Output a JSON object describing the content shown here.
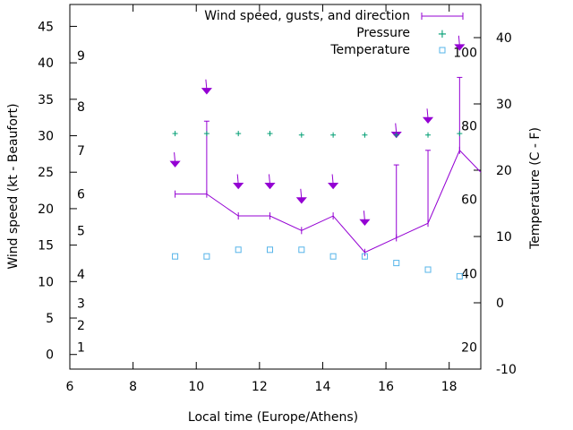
{
  "chart_data": {
    "type": "line",
    "xlabel": "Local time (Europe/Athens)",
    "ylabel": "Wind speed (kt - Beaufort)",
    "y2label": "Temperature (C - F)",
    "xlim": [
      6,
      19
    ],
    "ylim": [
      -2,
      48
    ],
    "y2lim": [
      -10,
      45
    ],
    "x_ticks": [
      "6",
      "8",
      "10",
      "12",
      "14",
      "16",
      "18"
    ],
    "y_ticks": [
      "0",
      "5",
      "10",
      "15",
      "20",
      "25",
      "30",
      "35",
      "40",
      "45"
    ],
    "y2_ticks": [
      "-10",
      "0",
      "10",
      "20",
      "30",
      "40"
    ],
    "beaufort_labels": [
      {
        "text": "1",
        "y": 1
      },
      {
        "text": "2",
        "y": 4
      },
      {
        "text": "3",
        "y": 7
      },
      {
        "text": "4",
        "y": 11
      },
      {
        "text": "5",
        "y": 17
      },
      {
        "text": "6",
        "y": 22
      },
      {
        "text": "7",
        "y": 28
      },
      {
        "text": "8",
        "y": 34
      },
      {
        "text": "9",
        "y": 41
      }
    ],
    "fahrenheit_labels": [
      {
        "text": "20",
        "c": -6.7
      },
      {
        "text": "40",
        "c": 4.4
      },
      {
        "text": "60",
        "c": 15.6
      },
      {
        "text": "80",
        "c": 26.7
      },
      {
        "text": "100",
        "c": 37.8
      }
    ],
    "legend": {
      "position": "top-right",
      "entries": [
        "Wind speed, gusts, and direction",
        "Pressure",
        "Temperature"
      ]
    },
    "colors": {
      "wind": "#9400d3",
      "pressure": "#009e73",
      "temperature": "#56b4e9"
    },
    "series": [
      {
        "name": "Wind speed, gusts, and direction",
        "x": [
          9.33,
          10.33,
          11.33,
          12.33,
          13.33,
          14.33,
          15.33,
          16.33,
          17.33,
          18.33,
          19.0
        ],
        "speed": [
          22,
          22,
          19,
          19,
          17,
          19,
          14,
          16,
          18,
          28,
          25
        ],
        "gust": [
          null,
          32,
          null,
          null,
          null,
          null,
          null,
          26,
          28,
          38,
          null
        ],
        "arrow_y": [
          26,
          36,
          23,
          23,
          21,
          23,
          18,
          30,
          32,
          42,
          null
        ]
      },
      {
        "name": "Pressure",
        "x": [
          9.33,
          10.33,
          11.33,
          12.33,
          13.33,
          14.33,
          15.33,
          16.33,
          17.33,
          18.33
        ],
        "values": [
          30.3,
          30.3,
          30.3,
          30.3,
          30.1,
          30.1,
          30.1,
          30.1,
          30.1,
          30.3
        ]
      },
      {
        "name": "Temperature",
        "x": [
          9.33,
          10.33,
          11.33,
          12.33,
          13.33,
          14.33,
          15.33,
          16.33,
          17.33,
          18.33
        ],
        "values": [
          7,
          7,
          8,
          8,
          8,
          7,
          7,
          6,
          5,
          4
        ]
      }
    ]
  }
}
